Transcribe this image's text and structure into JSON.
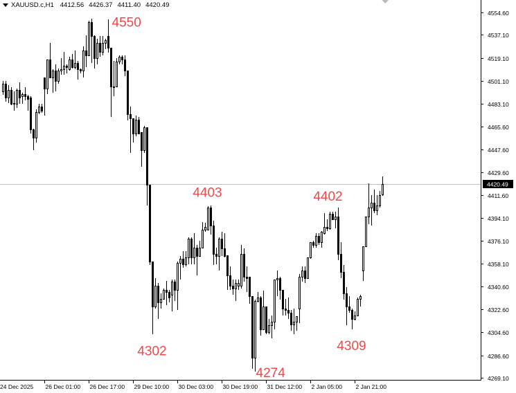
{
  "header": {
    "symbol": "XAUUSD.c,H1",
    "open": "4412.56",
    "high": "4426.37",
    "low": "4411.40",
    "close": "4420.49"
  },
  "chart_data": {
    "type": "candlestick",
    "title": "",
    "xlabel": "",
    "ylabel": "",
    "ylim": [
      4269.1,
      4554.6
    ],
    "grid": false,
    "colors": {
      "bull_body": "#ffffff",
      "bear_body": "#000000",
      "outline": "#000000",
      "annotation": "#f04848",
      "price_line": "#c0c0c0",
      "price_label_bg": "#000000"
    },
    "current_price": "4420.49",
    "y_ticks": [
      "4554.60",
      "4537.10",
      "4519.10",
      "4501.10",
      "4483.10",
      "4465.60",
      "4447.60",
      "4429.60",
      "4411.60",
      "4394.10",
      "4376.10",
      "4358.10",
      "4340.60",
      "4322.60",
      "4304.60",
      "4286.60",
      "4269.10"
    ],
    "x_ticks": [
      "24 Dec 2025",
      "26 Dec 01:00",
      "26 Dec 17:00",
      "29 Dec 10:00",
      "30 Dec 03:00",
      "30 Dec 19:00",
      "31 Dec 12:00",
      "2 Jan 05:00",
      "2 Jan 21:00"
    ],
    "annotations": [
      {
        "text": "4550",
        "candle": 38,
        "price": 4549,
        "position": "above-right"
      },
      {
        "text": "4403",
        "candle": 74,
        "price": 4403,
        "position": "above"
      },
      {
        "text": "4302",
        "candle": 54,
        "price": 4303,
        "position": "below"
      },
      {
        "text": "4274",
        "candle": 91,
        "price": 4274,
        "position": "below-right"
      },
      {
        "text": "4402",
        "candle": 121,
        "price": 4402,
        "position": "above-left"
      },
      {
        "text": "4309",
        "candle": 126,
        "price": 4307,
        "position": "below"
      }
    ],
    "candles_ohlc": [
      [
        4493,
        4501,
        4490,
        4499
      ],
      [
        4499,
        4501,
        4485,
        4488
      ],
      [
        4488,
        4498,
        4484,
        4494
      ],
      [
        4494,
        4496,
        4482,
        4483
      ],
      [
        4484,
        4493,
        4478,
        4483
      ],
      [
        4483,
        4495,
        4480,
        4494
      ],
      [
        4494,
        4500,
        4483,
        4488
      ],
      [
        4489,
        4492,
        4483,
        4491
      ],
      [
        4491,
        4496,
        4486,
        4489
      ],
      [
        4489,
        4490,
        4478,
        4487
      ],
      [
        4488,
        4489,
        4460,
        4463
      ],
      [
        4463,
        4464,
        4447,
        4457
      ],
      [
        4457,
        4479,
        4453,
        4477
      ],
      [
        4477,
        4483,
        4475,
        4481
      ],
      [
        4481,
        4483,
        4476,
        4478
      ],
      [
        4504,
        4504,
        4474,
        4495
      ],
      [
        4495,
        4518,
        4491,
        4518
      ],
      [
        4518,
        4531,
        4504,
        4504
      ],
      [
        4504,
        4510,
        4492,
        4509
      ],
      [
        4509,
        4514,
        4493,
        4501
      ],
      [
        4501,
        4511,
        4499,
        4509
      ],
      [
        4509,
        4519,
        4506,
        4510
      ],
      [
        4510,
        4524,
        4506,
        4513
      ],
      [
        4513,
        4514,
        4507,
        4512
      ],
      [
        4510,
        4520,
        4509,
        4518
      ],
      [
        4518,
        4522,
        4511,
        4512
      ],
      [
        4512,
        4525,
        4510,
        4515
      ],
      [
        4515,
        4517,
        4502,
        4510
      ],
      [
        4510,
        4511,
        4507,
        4509
      ],
      [
        4509,
        4528,
        4504,
        4525
      ],
      [
        4525,
        4537,
        4512,
        4521
      ],
      [
        4521,
        4548,
        4521,
        4547
      ],
      [
        4547,
        4550,
        4515,
        4536
      ],
      [
        4536,
        4537,
        4511,
        4519
      ],
      [
        4519,
        4534,
        4514,
        4531
      ],
      [
        4531,
        4536,
        4520,
        4524
      ],
      [
        4524,
        4536,
        4521,
        4531
      ],
      [
        4531,
        4534,
        4526,
        4533
      ],
      [
        4536,
        4549,
        4523,
        4527
      ],
      [
        4527,
        4527,
        4473,
        4497
      ],
      [
        4496,
        4517,
        4489,
        4497
      ],
      [
        4497,
        4519,
        4496,
        4516
      ],
      [
        4516,
        4521,
        4514,
        4520
      ],
      [
        4520,
        4521,
        4514,
        4518
      ],
      [
        4518,
        4521,
        4505,
        4509
      ],
      [
        4509,
        4509,
        4470,
        4475
      ],
      [
        4475,
        4481,
        4445,
        4472
      ],
      [
        4472,
        4472,
        4453,
        4460
      ],
      [
        4460,
        4474,
        4458,
        4471
      ],
      [
        4471,
        4473,
        4460,
        4460
      ],
      [
        4461,
        4461,
        4434,
        4447
      ],
      [
        4447,
        4466,
        4445,
        4465
      ],
      [
        4465,
        4465,
        4404,
        4420
      ],
      [
        4420,
        4420,
        4357,
        4360
      ],
      [
        4360,
        4360,
        4303,
        4325
      ],
      [
        4325,
        4347,
        4323,
        4341
      ],
      [
        4341,
        4343,
        4315,
        4328
      ],
      [
        4328,
        4335,
        4323,
        4331
      ],
      [
        4331,
        4339,
        4331,
        4338
      ],
      [
        4338,
        4345,
        4326,
        4336
      ],
      [
        4336,
        4338,
        4328,
        4332
      ],
      [
        4334,
        4346,
        4321,
        4344
      ],
      [
        4344,
        4346,
        4329,
        4338
      ],
      [
        4338,
        4360,
        4322,
        4359
      ],
      [
        4359,
        4364,
        4346,
        4362
      ],
      [
        4362,
        4368,
        4355,
        4358
      ],
      [
        4358,
        4368,
        4356,
        4363
      ],
      [
        4363,
        4379,
        4358,
        4378
      ],
      [
        4378,
        4379,
        4358,
        4363
      ],
      [
        4363,
        4382,
        4358,
        4371
      ],
      [
        4371,
        4373,
        4349,
        4364
      ],
      [
        4364,
        4376,
        4364,
        4371
      ],
      [
        4371,
        4391,
        4371,
        4385
      ],
      [
        4385,
        4390,
        4383,
        4387
      ],
      [
        4385,
        4403,
        4385,
        4402
      ],
      [
        4402,
        4404,
        4381,
        4388
      ],
      [
        4388,
        4392,
        4357,
        4366
      ],
      [
        4366,
        4371,
        4358,
        4364
      ],
      [
        4364,
        4379,
        4353,
        4378
      ],
      [
        4378,
        4383,
        4364,
        4370
      ],
      [
        4370,
        4382,
        4363,
        4364
      ],
      [
        4365,
        4365,
        4338,
        4349
      ],
      [
        4349,
        4356,
        4338,
        4341
      ],
      [
        4341,
        4346,
        4334,
        4339
      ],
      [
        4339,
        4346,
        4329,
        4343
      ],
      [
        4341,
        4346,
        4338,
        4343
      ],
      [
        4341,
        4373,
        4339,
        4366
      ],
      [
        4366,
        4370,
        4344,
        4348
      ],
      [
        4348,
        4356,
        4336,
        4347
      ],
      [
        4348,
        4348,
        4327,
        4333
      ],
      [
        4333,
        4333,
        4276,
        4285
      ],
      [
        4285,
        4330,
        4274,
        4329
      ],
      [
        4329,
        4336,
        4328,
        4332
      ],
      [
        4332,
        4333,
        4302,
        4307
      ],
      [
        4307,
        4337,
        4307,
        4325
      ],
      [
        4325,
        4325,
        4303,
        4305
      ],
      [
        4305,
        4315,
        4303,
        4310
      ],
      [
        4310,
        4318,
        4300,
        4313
      ],
      [
        4313,
        4346,
        4307,
        4346
      ],
      [
        4346,
        4353,
        4333,
        4347
      ],
      [
        4347,
        4348,
        4330,
        4338
      ],
      [
        4338,
        4338,
        4318,
        4323
      ],
      [
        4323,
        4331,
        4318,
        4322
      ],
      [
        4322,
        4332,
        4315,
        4320
      ],
      [
        4320,
        4322,
        4306,
        4311
      ],
      [
        4311,
        4323,
        4303,
        4313
      ],
      [
        4313,
        4317,
        4306,
        4317
      ],
      [
        4323,
        4350,
        4312,
        4348
      ],
      [
        4348,
        4356,
        4344,
        4353
      ],
      [
        4353,
        4356,
        4343,
        4347
      ],
      [
        4347,
        4363,
        4347,
        4363
      ],
      [
        4363,
        4375,
        4362,
        4375
      ],
      [
        4375,
        4376,
        4371,
        4373
      ],
      [
        4373,
        4382,
        4371,
        4380
      ],
      [
        4380,
        4382,
        4373,
        4375
      ],
      [
        4375,
        4384,
        4371,
        4383
      ],
      [
        4382,
        4398,
        4381,
        4387
      ],
      [
        4387,
        4393,
        4384,
        4386
      ],
      [
        4386,
        4399,
        4385,
        4397
      ],
      [
        4397,
        4399,
        4393,
        4393
      ],
      [
        4393,
        4399,
        4386,
        4395
      ],
      [
        4395,
        4402,
        4361,
        4366
      ],
      [
        4366,
        4375,
        4347,
        4352
      ],
      [
        4352,
        4357,
        4330,
        4335
      ],
      [
        4335,
        4340,
        4310,
        4325
      ],
      [
        4325,
        4333,
        4320,
        4322
      ],
      [
        4322,
        4323,
        4307,
        4315
      ],
      [
        4315,
        4321,
        4314,
        4318
      ],
      [
        4318,
        4332,
        4317,
        4331
      ],
      [
        4331,
        4334,
        4325,
        4333
      ],
      [
        4353,
        4372,
        4345,
        4372
      ],
      [
        4372,
        4395,
        4372,
        4395
      ],
      [
        4395,
        4421,
        4389,
        4402
      ],
      [
        4402,
        4412,
        4388,
        4406
      ],
      [
        4406,
        4416,
        4398,
        4400
      ],
      [
        4400,
        4412,
        4396,
        4404
      ],
      [
        4404,
        4415,
        4402,
        4412
      ],
      [
        4412.56,
        4426.37,
        4411.4,
        4420.49
      ]
    ]
  }
}
